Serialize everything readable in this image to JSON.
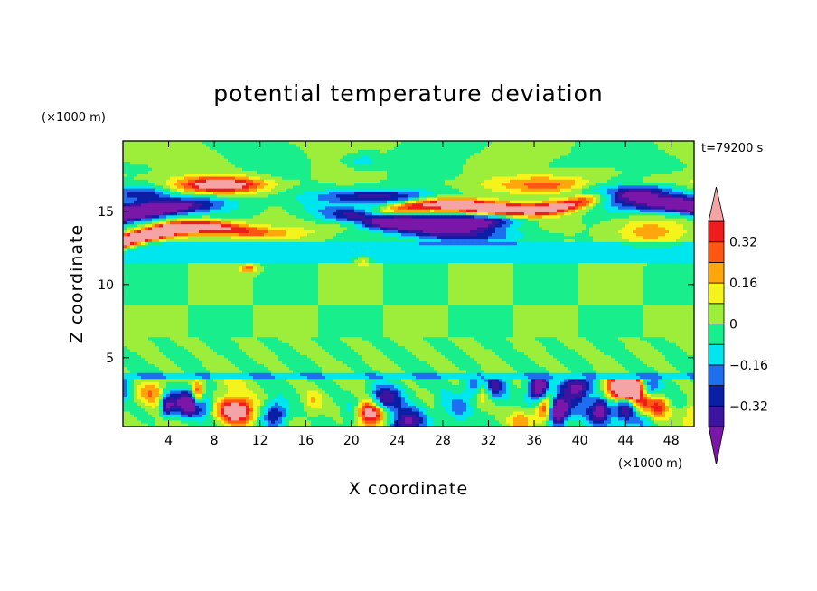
{
  "chart_data": {
    "type": "heatmap",
    "title": "potential temperature deviation",
    "xlabel": "X coordinate",
    "ylabel": "Z coordinate",
    "x_unit": "(×1000 m)",
    "y_unit": "(×1000 m)",
    "time_label": "t=79200 s",
    "xlim": [
      0,
      50
    ],
    "ylim": [
      0.3,
      19.8
    ],
    "x_ticks": [
      4,
      8,
      12,
      16,
      20,
      24,
      28,
      32,
      36,
      40,
      44,
      48
    ],
    "y_ticks": [
      5,
      10,
      15
    ],
    "colorbar": {
      "levels": [
        -0.4,
        -0.32,
        -0.24,
        -0.16,
        -0.08,
        0,
        0.08,
        0.16,
        0.24,
        0.32,
        0.4
      ],
      "tick_labels": [
        "0.32",
        "0.16",
        "0",
        "−0.16",
        "−0.32"
      ],
      "tick_values": [
        0.32,
        0.16,
        0,
        -0.16,
        -0.32
      ],
      "colors": [
        "#7a16a8",
        "#3c14a0",
        "#0a1ea6",
        "#1e6ef0",
        "#00e6ee",
        "#18ee8c",
        "#9cee3a",
        "#f4f41c",
        "#ffa60c",
        "#ff5612",
        "#ee1c1c",
        "#f4a4a4"
      ],
      "extend": "both"
    }
  }
}
